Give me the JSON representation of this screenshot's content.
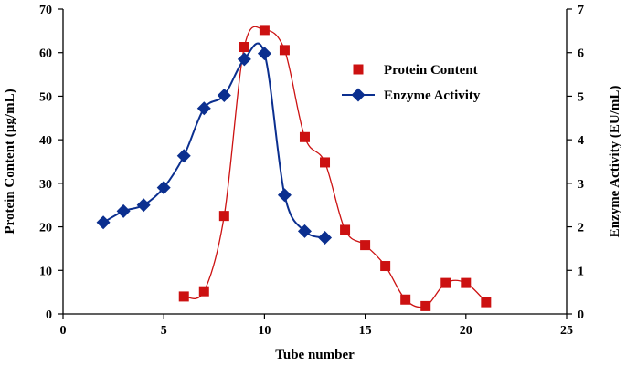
{
  "chart_data": {
    "type": "scatter",
    "title": "",
    "xlabel": "Tube number",
    "ylabel_left": "Protein Content (µg/mL)",
    "ylabel_right": "Enzyme Activity (EU/mL)",
    "xlim": [
      0,
      25
    ],
    "x_ticks": [
      0,
      5,
      10,
      15,
      20,
      25
    ],
    "ylim_left": [
      0,
      70
    ],
    "y_ticks_left": [
      0,
      10,
      20,
      30,
      40,
      50,
      60,
      70
    ],
    "ylim_right": [
      0,
      7
    ],
    "y_ticks_right": [
      0,
      1,
      2,
      3,
      4,
      5,
      6,
      7
    ],
    "grid": false,
    "legend_position": "top-right",
    "series": [
      {
        "name": "Protein Content",
        "axis": "left",
        "color": "#cc1111",
        "marker": "square",
        "x": [
          6,
          7,
          8,
          9,
          10,
          11,
          12,
          13,
          14,
          15,
          16,
          17,
          18,
          19,
          20,
          21
        ],
        "y": [
          4,
          5.2,
          22.5,
          61.3,
          65.2,
          60.6,
          40.6,
          34.8,
          19.3,
          15.8,
          11,
          3.3,
          1.8,
          7.1,
          7.1,
          2.7
        ]
      },
      {
        "name": "Enzyme Activity",
        "axis": "right",
        "color": "#0b2f8f",
        "marker": "diamond",
        "x": [
          2,
          3,
          4,
          5,
          6,
          7,
          8,
          9,
          10,
          11,
          12,
          13
        ],
        "y": [
          2.1,
          2.36,
          2.5,
          2.9,
          3.63,
          4.72,
          5.02,
          5.85,
          5.98,
          2.73,
          1.9,
          1.75
        ]
      }
    ]
  }
}
